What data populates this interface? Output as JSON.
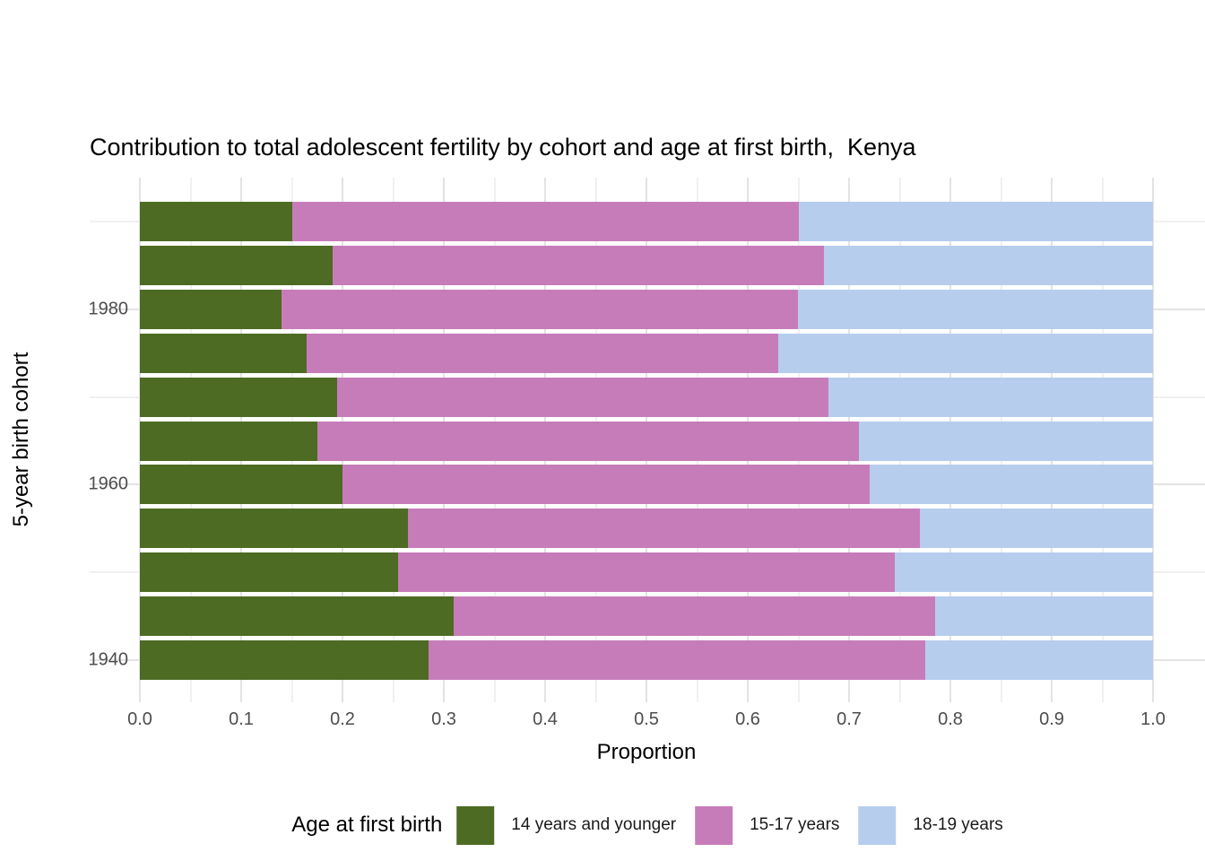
{
  "chart_data": {
    "type": "bar",
    "stacked": true,
    "orientation": "horizontal",
    "title": "Contribution to total adolescent fertility by cohort and age at first birth,  Kenya",
    "xlabel": "Proportion",
    "ylabel": "5-year birth cohort",
    "xlim": [
      0,
      1
    ],
    "grid": true,
    "x_tick_labels": [
      "0.0",
      "0.1",
      "0.2",
      "0.3",
      "0.4",
      "0.5",
      "0.6",
      "0.7",
      "0.8",
      "0.9",
      "1.0"
    ],
    "y_ticks": [
      {
        "label": "1980",
        "value": 1980
      },
      {
        "label": "1960",
        "value": 1960
      },
      {
        "label": "1940",
        "value": 1940
      }
    ],
    "y_minor_gridlines": [
      1990,
      1970,
      1950
    ],
    "categories": [
      1990,
      1985,
      1980,
      1975,
      1970,
      1965,
      1960,
      1955,
      1950,
      1945,
      1940
    ],
    "series": [
      {
        "name": "14 years and younger",
        "color": "#4d6b23",
        "values": [
          0.15,
          0.19,
          0.14,
          0.165,
          0.195,
          0.175,
          0.2,
          0.265,
          0.255,
          0.31,
          0.285
        ]
      },
      {
        "name": "15-17 years",
        "color": "#c77cba",
        "values": [
          0.5,
          0.485,
          0.51,
          0.465,
          0.485,
          0.535,
          0.52,
          0.505,
          0.49,
          0.475,
          0.49
        ]
      },
      {
        "name": "18-19 years",
        "color": "#b6cdee",
        "values": [
          0.35,
          0.325,
          0.35,
          0.37,
          0.32,
          0.29,
          0.28,
          0.23,
          0.255,
          0.215,
          0.225
        ]
      }
    ],
    "legend": {
      "title": "Age at first birth",
      "position": "bottom"
    }
  }
}
